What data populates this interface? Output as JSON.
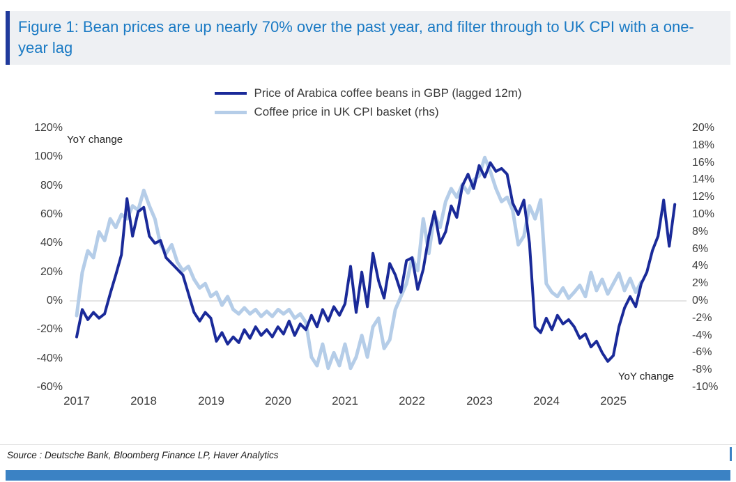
{
  "header": {
    "title": "Figure 1: Bean prices are up nearly 70% over the past year, and filter through to UK CPI with a one-year lag"
  },
  "footer": {
    "source": "Source : Deutsche Bank, Bloomberg Finance LP, Haver Analytics"
  },
  "colors": {
    "title_text": "#1a7ac4",
    "title_box_bg": "#eef0f3",
    "title_box_accent": "#203a9c",
    "bottom_bar": "#3b82c4",
    "navy_line": "#1a2a99",
    "light_blue_line": "#b5cde8",
    "zero_line": "#c9c9c9"
  },
  "chart_data": {
    "type": "line",
    "title": "Figure 1: Bean prices are up nearly 70% over the past year, and filter through to UK CPI with a one-year lag",
    "legend_position": "top",
    "grid": "off",
    "zero_line": true,
    "x_axis": {
      "tick_labels": [
        "2017",
        "2018",
        "2019",
        "2020",
        "2021",
        "2022",
        "2023",
        "2024",
        "2025"
      ],
      "tick_years": [
        2017,
        2018,
        2019,
        2020,
        2021,
        2022,
        2023,
        2024,
        2025
      ]
    },
    "left_axis": {
      "label": "YoY change",
      "lim": [
        -60,
        120
      ],
      "tick_labels": [
        "120%",
        "100%",
        "80%",
        "60%",
        "40%",
        "20%",
        "0%",
        "-20%",
        "-40%",
        "-60%"
      ],
      "tick_values": [
        120,
        100,
        80,
        60,
        40,
        20,
        0,
        -20,
        -40,
        -60
      ]
    },
    "right_axis": {
      "label": "YoY change",
      "lim": [
        -10,
        20
      ],
      "tick_labels": [
        "20%",
        "18%",
        "16%",
        "14%",
        "12%",
        "10%",
        "8%",
        "6%",
        "4%",
        "2%",
        "0%",
        "-2%",
        "-4%",
        "-6%",
        "-8%",
        "-10%"
      ],
      "tick_values": [
        20,
        18,
        16,
        14,
        12,
        10,
        8,
        6,
        4,
        2,
        0,
        -2,
        -4,
        -6,
        -8,
        -10
      ]
    },
    "series": [
      {
        "name": "Price of Arabica coffee beans in GBP (lagged 12m)",
        "axis": "left",
        "color": "#1a2a99",
        "stroke_width": 4,
        "start_year": 2017,
        "points_per_year": 12,
        "values": [
          -25,
          -6,
          -13,
          -8,
          -12,
          -9,
          5,
          18,
          32,
          71,
          45,
          62,
          65,
          45,
          40,
          42,
          30,
          26,
          22,
          18,
          5,
          -8,
          -14,
          -8,
          -12,
          -28,
          -22,
          -30,
          -25,
          -29,
          -20,
          -26,
          -18,
          -24,
          -20,
          -25,
          -18,
          -23,
          -14,
          -24,
          -16,
          -20,
          -10,
          -18,
          -6,
          -14,
          -4,
          -10,
          -2,
          24,
          -8,
          20,
          -4,
          33,
          14,
          2,
          26,
          18,
          6,
          28,
          30,
          8,
          22,
          45,
          62,
          40,
          48,
          66,
          58,
          80,
          88,
          78,
          94,
          86,
          96,
          90,
          92,
          88,
          68,
          60,
          70,
          40,
          -18,
          -22,
          -12,
          -20,
          -10,
          -16,
          -13,
          -18,
          -26,
          -23,
          -32,
          -28,
          -36,
          -42,
          -38,
          -18,
          -5,
          3,
          -4,
          12,
          20,
          35,
          45,
          70,
          38,
          67
        ]
      },
      {
        "name": "Coffee price in UK CPI basket (rhs)",
        "axis": "right",
        "color": "#b5cde8",
        "stroke_width": 5,
        "start_year": 2017,
        "points_per_year": 12,
        "values": [
          -1.7,
          3.3,
          5.8,
          5,
          8,
          7,
          9.5,
          8.5,
          10,
          9.5,
          11,
          10.5,
          12.8,
          11,
          9.5,
          6.5,
          5.5,
          6.5,
          4.5,
          3.5,
          4,
          2.5,
          1.5,
          2,
          0.5,
          1,
          -0.5,
          0.5,
          -1,
          -1.5,
          -0.8,
          -1.5,
          -1,
          -1.8,
          -1.2,
          -1.8,
          -1,
          -1.5,
          -1,
          -2,
          -1.5,
          -2.5,
          -6.5,
          -7.5,
          -5,
          -7.8,
          -6,
          -7.5,
          -5,
          -7.8,
          -6.5,
          -4,
          -6.5,
          -3,
          -2,
          -5.5,
          -4.5,
          -1,
          0.5,
          2,
          5,
          3.5,
          9.5,
          5.5,
          10,
          8.5,
          11.5,
          13,
          12,
          13.5,
          12.5,
          14,
          14.5,
          16.6,
          15,
          13,
          11.5,
          12,
          10.5,
          6.5,
          7.5,
          11,
          9.5,
          11.7,
          2,
          1,
          0.5,
          1.5,
          0.3,
          1,
          1.8,
          0.5,
          3.3,
          1.2,
          2.5,
          0.8,
          2,
          3.2,
          1.2,
          2.6,
          1,
          2.2
        ]
      }
    ]
  }
}
